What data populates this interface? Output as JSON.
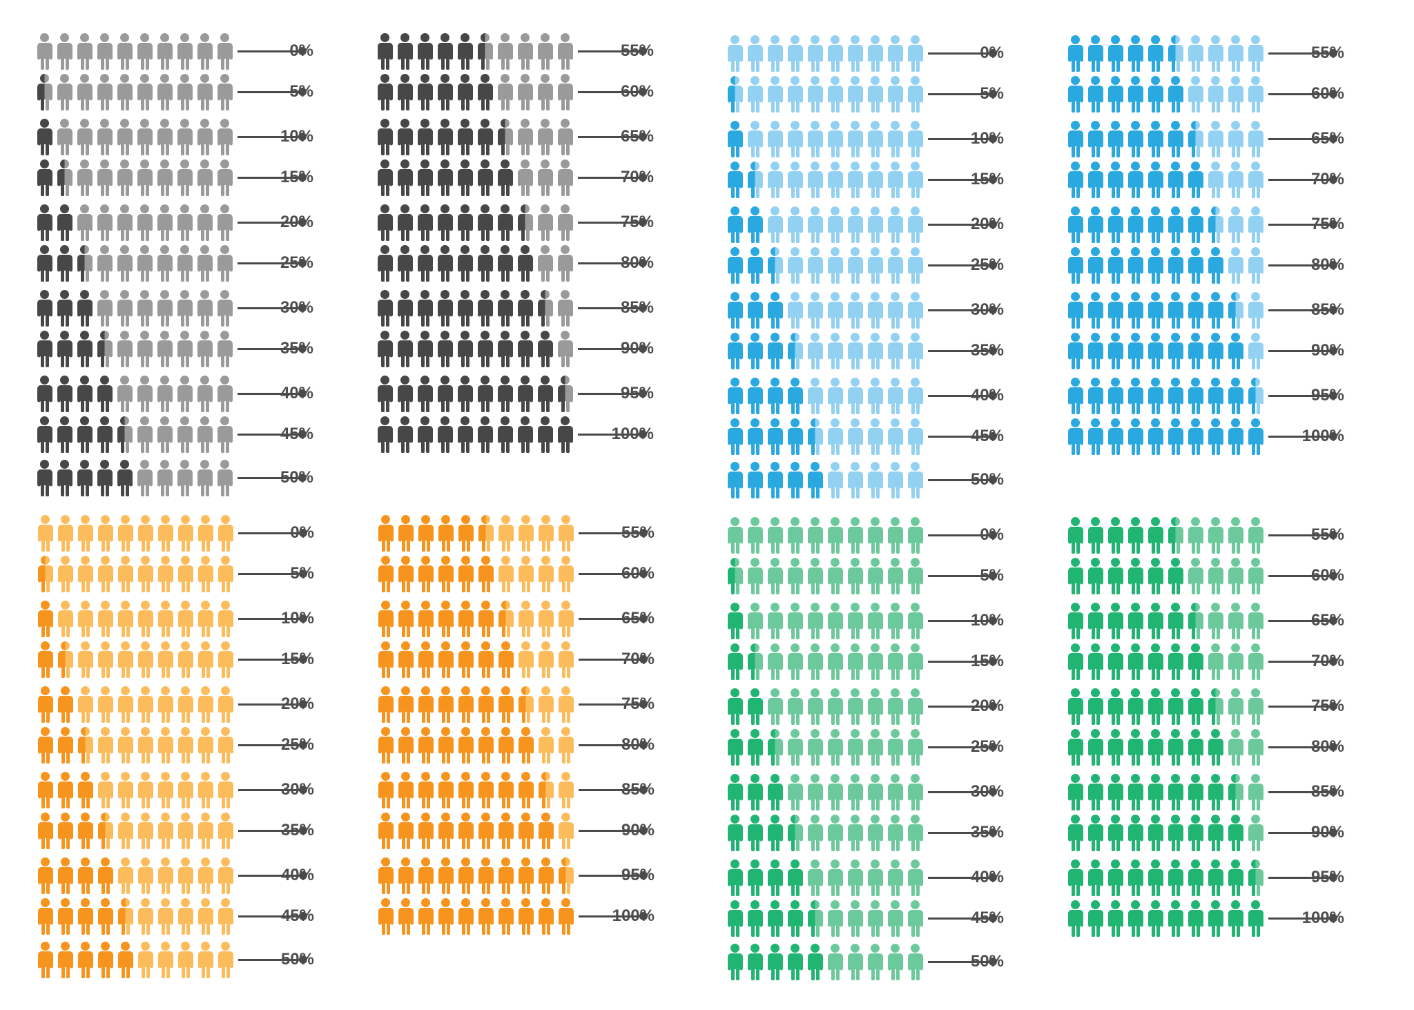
{
  "chart_data": {
    "type": "pictograph",
    "icons_per_row": 10,
    "rows": [
      {
        "value": 0,
        "label": "0%"
      },
      {
        "value": 5,
        "label": "5%"
      },
      {
        "value": 10,
        "label": "10%"
      },
      {
        "value": 15,
        "label": "15%"
      },
      {
        "value": 20,
        "label": "20%"
      },
      {
        "value": 25,
        "label": "25%"
      },
      {
        "value": 30,
        "label": "30%"
      },
      {
        "value": 35,
        "label": "35%"
      },
      {
        "value": 40,
        "label": "40%"
      },
      {
        "value": 45,
        "label": "45%"
      },
      {
        "value": 50,
        "label": "50%"
      },
      {
        "value": 55,
        "label": "55%"
      },
      {
        "value": 60,
        "label": "60%"
      },
      {
        "value": 65,
        "label": "65%"
      },
      {
        "value": 70,
        "label": "70%"
      },
      {
        "value": 75,
        "label": "75%"
      },
      {
        "value": 80,
        "label": "80%"
      },
      {
        "value": 85,
        "label": "85%"
      },
      {
        "value": 90,
        "label": "90%"
      },
      {
        "value": 95,
        "label": "95%"
      },
      {
        "value": 100,
        "label": "100%"
      }
    ],
    "color_sets": [
      {
        "name": "gray",
        "filled": "#474747",
        "empty": "#9a9a9a"
      },
      {
        "name": "blue",
        "filled": "#2aa9e0",
        "empty": "#92d1f1"
      },
      {
        "name": "orange",
        "filled": "#f7941d",
        "empty": "#fdbc5c"
      },
      {
        "name": "green",
        "filled": "#21b573",
        "empty": "#6cc99c"
      }
    ],
    "line_color": "#4a4a4a",
    "label_color": "#4d4d4d"
  }
}
